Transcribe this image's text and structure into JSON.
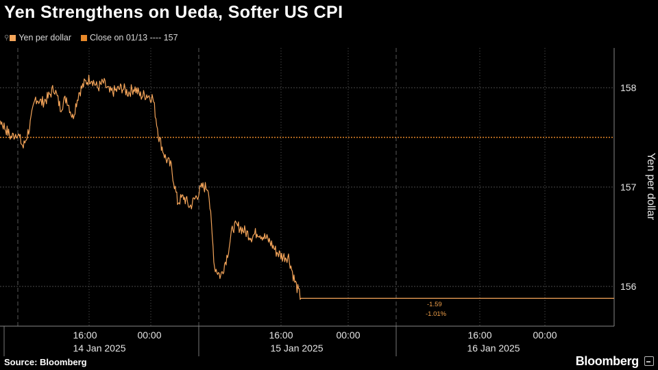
{
  "title": "Yen Strengthens on Ueda, Softer US CPI",
  "legend": {
    "series_label": "Yen per dollar",
    "reference_label": "Close on 01/13 ---- 157"
  },
  "source": "Source: Bloomberg",
  "brand": "Bloomberg",
  "colors": {
    "background": "#000000",
    "series": "#f5a55a",
    "reference": "#e8892a",
    "grid": "#555555"
  },
  "chart_data": {
    "type": "line",
    "title": "Yen Strengthens on Ueda, Softer US CPI",
    "ylabel": "Yen per dollar",
    "xlabel": "",
    "ylim": [
      155.6,
      158.4
    ],
    "yticks": [
      156,
      157,
      158
    ],
    "x_time_ticks": [
      "16:00",
      "00:00",
      "16:00",
      "00:00",
      "16:00",
      "00:00"
    ],
    "x_date_labels": [
      "14 Jan 2025",
      "15 Jan 2025",
      "16 Jan 2025"
    ],
    "reference_line": {
      "label": "Close on 01/13",
      "value": 157.5
    },
    "annotations": [
      "-1.59",
      "-1.01%"
    ],
    "series": [
      {
        "name": "Yen per dollar",
        "x": [
          "01/14 04:00",
          "01/14 05:00",
          "01/14 06:00",
          "01/14 07:00",
          "01/14 08:00",
          "01/14 09:00",
          "01/14 10:00",
          "01/14 11:00",
          "01/14 12:00",
          "01/14 13:00",
          "01/14 14:00",
          "01/14 15:00",
          "01/14 16:00",
          "01/14 17:00",
          "01/14 18:00",
          "01/14 19:00",
          "01/14 20:00",
          "01/14 21:00",
          "01/14 22:00",
          "01/14 23:00",
          "01/15 00:00",
          "01/15 01:00",
          "01/15 02:00",
          "01/15 03:00",
          "01/15 04:00",
          "01/15 05:00",
          "01/15 06:00",
          "01/15 07:00",
          "01/15 08:00",
          "01/15 09:00",
          "01/15 10:00",
          "01/15 11:00",
          "01/15 12:00",
          "01/15 13:00",
          "01/15 14:00",
          "01/15 15:00",
          "01/15 16:00",
          "01/15 17:00",
          "01/15 18:00",
          "01/15 19:00",
          "01/15 20:00",
          "01/15 21:00",
          "01/15 22:00",
          "01/15 23:00",
          "01/16 00:00",
          "01/16 01:00",
          "01/16 02:00",
          "01/16 03:00",
          "01/16 04:00",
          "01/16 05:00",
          "01/16 06:00",
          "01/16 07:00",
          "01/16 08:00",
          "01/16 09:00",
          "01/16 10:00",
          "01/16 11:00",
          "01/16 12:00",
          "01/16 13:00"
        ],
        "values": [
          157.5,
          157.3,
          157.6,
          157.5,
          157.7,
          157.6,
          157.5,
          157.55,
          157.4,
          157.6,
          157.9,
          157.85,
          157.9,
          158.0,
          157.8,
          157.9,
          157.7,
          157.95,
          158.05,
          158.1,
          158.0,
          158.05,
          157.95,
          157.97,
          158.0,
          157.95,
          158.0,
          157.92,
          157.93,
          157.9,
          157.5,
          157.3,
          157.2,
          156.85,
          156.9,
          156.8,
          156.9,
          157.0,
          157.0,
          156.2,
          156.1,
          156.3,
          156.6,
          156.6,
          156.55,
          156.5,
          156.55,
          156.5,
          156.45,
          156.35,
          156.3,
          156.3,
          156.05,
          155.88,
          155.88,
          155.88,
          155.88,
          155.88
        ]
      }
    ]
  }
}
